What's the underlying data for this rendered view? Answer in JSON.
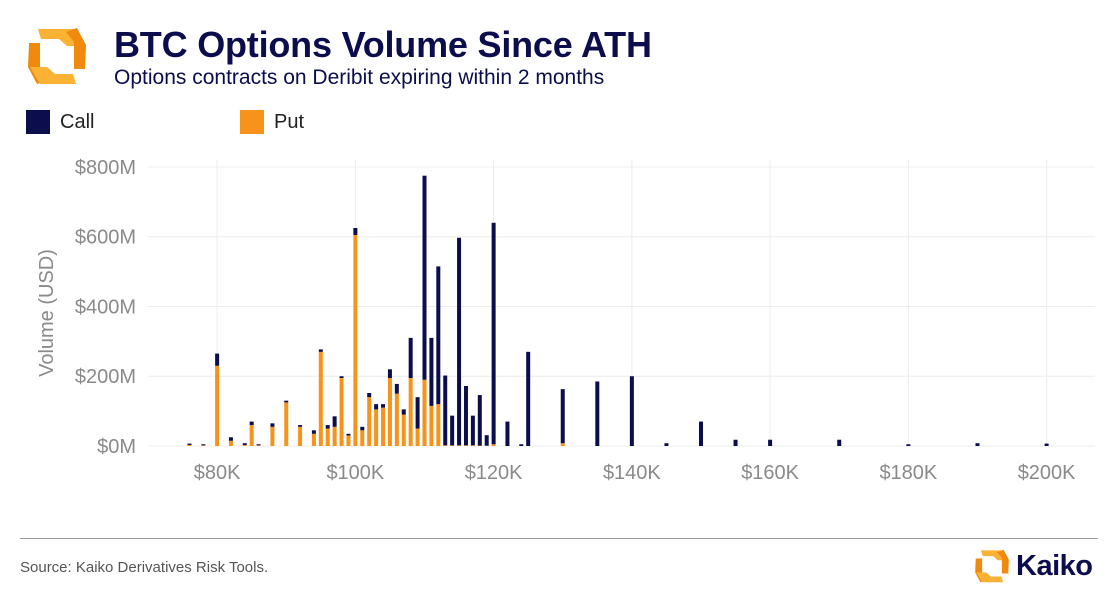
{
  "header": {
    "title": "BTC Options Volume Since ATH",
    "subtitle": "Options contracts on Deribit expiring within 2 months"
  },
  "colors": {
    "call": "#0b0d4d",
    "put": "#f7931a",
    "logo_light": "#f9b233",
    "logo_dark": "#f08a0e"
  },
  "icons": {
    "header_logo": "kaiko-logo-icon",
    "footer_logo": "kaiko-logo-icon"
  },
  "chart_data": {
    "type": "bar",
    "stacked": true,
    "title": "",
    "xlabel": "",
    "ylabel": "Volume (USD)",
    "xlim": [
      70000,
      207000
    ],
    "ylim": [
      0,
      820
    ],
    "y_unit": "USD millions",
    "x_ticks": [
      {
        "value": 80000,
        "label": "$80K"
      },
      {
        "value": 100000,
        "label": "$100K"
      },
      {
        "value": 120000,
        "label": "$120K"
      },
      {
        "value": 140000,
        "label": "$140K"
      },
      {
        "value": 160000,
        "label": "$160K"
      },
      {
        "value": 180000,
        "label": "$180K"
      },
      {
        "value": 200000,
        "label": "$200K"
      }
    ],
    "y_ticks": [
      {
        "value": 0,
        "label": "$0M"
      },
      {
        "value": 200,
        "label": "$200M"
      },
      {
        "value": 400,
        "label": "$400M"
      },
      {
        "value": 600,
        "label": "$600M"
      },
      {
        "value": 800,
        "label": "$800M"
      }
    ],
    "grid": true,
    "legend_position": "top-left",
    "series": [
      {
        "key": "call",
        "name": "Call"
      },
      {
        "key": "put",
        "name": "Put"
      }
    ],
    "strikes": [
      76000,
      78000,
      80000,
      82000,
      84000,
      85000,
      86000,
      88000,
      90000,
      92000,
      94000,
      95000,
      96000,
      97000,
      98000,
      99000,
      100000,
      101000,
      102000,
      103000,
      104000,
      105000,
      106000,
      107000,
      108000,
      109000,
      110000,
      111000,
      112000,
      113000,
      114000,
      115000,
      116000,
      117000,
      118000,
      119000,
      120000,
      122000,
      124000,
      125000,
      130000,
      135000,
      140000,
      145000,
      150000,
      155000,
      160000,
      170000,
      180000,
      190000,
      200000
    ],
    "put": [
      3,
      2,
      230,
      15,
      3,
      60,
      2,
      55,
      125,
      55,
      35,
      270,
      50,
      55,
      195,
      30,
      605,
      45,
      140,
      105,
      110,
      195,
      150,
      90,
      195,
      50,
      190,
      115,
      120,
      2,
      2,
      2,
      2,
      2,
      1,
      1,
      5,
      0,
      0,
      0,
      8,
      0,
      0,
      0,
      0,
      0,
      0,
      0,
      0,
      0,
      0
    ],
    "call": [
      4,
      3,
      35,
      10,
      5,
      10,
      3,
      10,
      5,
      5,
      10,
      7,
      10,
      30,
      5,
      5,
      20,
      10,
      12,
      15,
      10,
      25,
      28,
      15,
      115,
      90,
      585,
      195,
      395,
      200,
      85,
      595,
      170,
      85,
      145,
      30,
      635,
      70,
      5,
      270,
      155,
      185,
      200,
      8,
      70,
      18,
      18,
      18,
      5,
      8,
      7
    ]
  },
  "footer": {
    "source": "Source: Kaiko Derivatives Risk Tools.",
    "brand": "Kaiko"
  }
}
